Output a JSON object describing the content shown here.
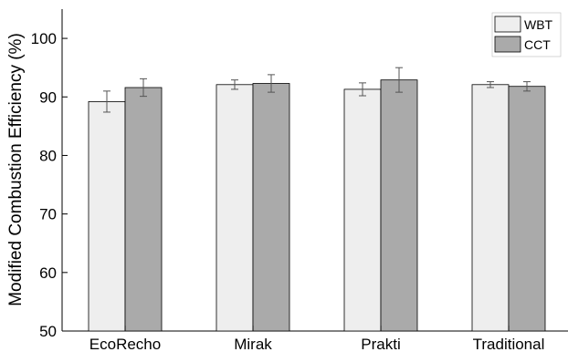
{
  "chart_data": {
    "type": "bar",
    "ylabel": "Modified Combustion Efficiency (%)",
    "xlabel": "",
    "ylim": [
      50,
      105
    ],
    "yticks": [
      50,
      60,
      70,
      80,
      90,
      100
    ],
    "categories": [
      "EcoRecho",
      "Mirak",
      "Prakti",
      "Traditional"
    ],
    "series": [
      {
        "name": "WBT",
        "color": "#eeeeee",
        "values": [
          89.2,
          92.1,
          91.3,
          92.1
        ],
        "errors": [
          1.8,
          0.8,
          1.1,
          0.5
        ]
      },
      {
        "name": "CCT",
        "color": "#aaaaaa",
        "values": [
          91.6,
          92.3,
          92.9,
          91.8
        ],
        "errors": [
          1.5,
          1.5,
          2.1,
          0.8
        ]
      }
    ],
    "legend_position": "top-right",
    "grid": false,
    "error_bars": true
  }
}
